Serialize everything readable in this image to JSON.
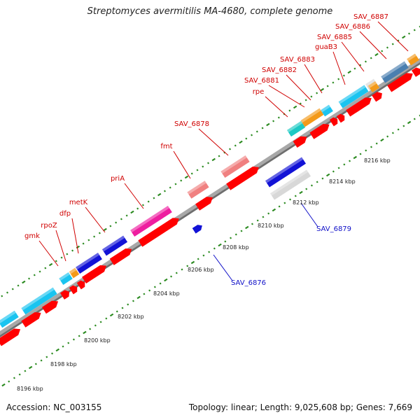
{
  "header": {
    "title": "Streptomyces avermitilis MA-4680, complete genome"
  },
  "footer": {
    "accession": "Accession: NC_003155",
    "stats": "Topology: linear; Length: 9,025,608 bp; Genes: 7,669"
  },
  "scale_labels": [
    "8196 kbp",
    "8198 kbp",
    "8200 kbp",
    "8202 kbp",
    "8204 kbp",
    "8206 kbp",
    "8208 kbp",
    "8210 kbp",
    "8212 kbp",
    "8214 kbp",
    "8216 kbp"
  ],
  "gene_labels_top": [
    "gmk",
    "rpoZ",
    "dfp",
    "metK",
    "priA",
    "fmt",
    "SAV_6878",
    "rpe",
    "SAV_6881",
    "SAV_6882",
    "SAV_6883",
    "guaB3",
    "SAV_6885",
    "SAV_6886",
    "SAV_6887"
  ],
  "gene_labels_bottom": [
    "SAV_6876",
    "SAV_6879"
  ],
  "colors": {
    "backbone": "#a8a8a8",
    "tick": "#2a8a1f",
    "cds": "#ff0000",
    "label_top": "#d00000",
    "label_bottom": "#1010c8",
    "cyan": "#19c4f0",
    "blue": "#1212d6",
    "magenta": "#ee1ea0",
    "salmon": "#f08080",
    "orange": "#f39a1a",
    "teal": "#1cc9c4",
    "steelblue": "#4a7fb0",
    "light-gray": "#d8d8d8"
  }
}
